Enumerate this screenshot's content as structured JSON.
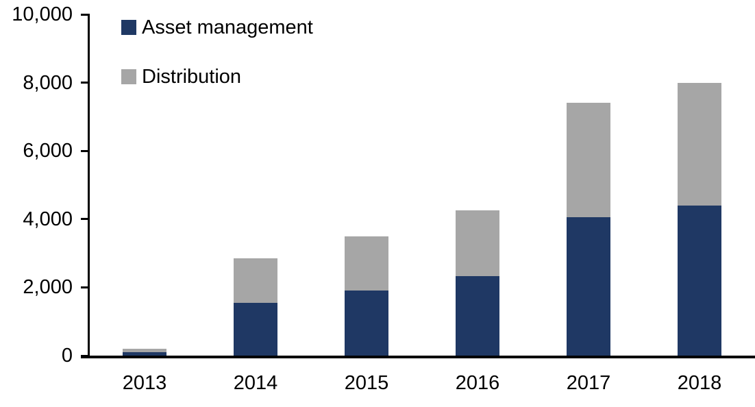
{
  "chart_data": {
    "type": "bar",
    "stacked": true,
    "title": "",
    "xlabel": "",
    "ylabel": "",
    "categories": [
      "2013",
      "2014",
      "2015",
      "2016",
      "2017",
      "2018"
    ],
    "series": [
      {
        "name": "Asset management",
        "color": "#1F3864",
        "values": [
          110,
          1540,
          1900,
          2320,
          4050,
          4400
        ]
      },
      {
        "name": "Distribution",
        "color": "#A6A6A6",
        "values": [
          100,
          1320,
          1600,
          1930,
          3350,
          3600
        ]
      }
    ],
    "ylim": [
      0,
      10000
    ],
    "yticks": [
      {
        "value": 0,
        "label": "0"
      },
      {
        "value": 2000,
        "label": "2,000"
      },
      {
        "value": 4000,
        "label": "4,000"
      },
      {
        "value": 6000,
        "label": "6,000"
      },
      {
        "value": 8000,
        "label": "8,000"
      },
      {
        "value": 10000,
        "label": "10,000"
      }
    ],
    "grid": false,
    "legend_position": "top-left-inside",
    "axis_color": "#000000",
    "background_color": "#FFFFFF"
  },
  "legend": {
    "items": [
      {
        "label": "Asset management",
        "color": "#1F3864"
      },
      {
        "label": "Distribution",
        "color": "#A6A6A6"
      }
    ]
  }
}
